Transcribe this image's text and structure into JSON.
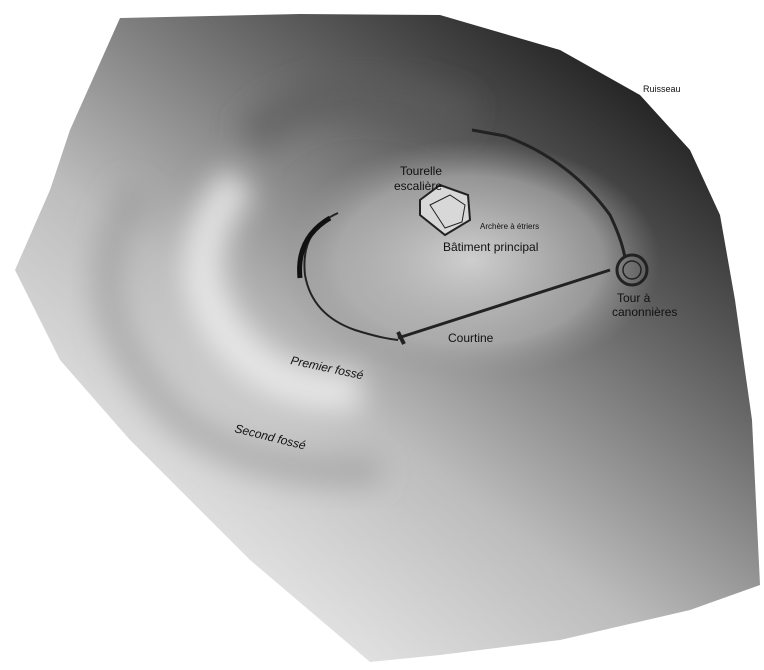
{
  "labels": {
    "ruisseau": "Ruisseau",
    "tourelle": [
      "Tourelle",
      "escalière"
    ],
    "archere": "Archère à étriers",
    "batiment": "Bâtiment principal",
    "tour": [
      "Tour à",
      "canonnières"
    ],
    "courtine": "Courtine",
    "premier_fosse": "Premier fossé",
    "second_fosse": "Second fossé"
  }
}
